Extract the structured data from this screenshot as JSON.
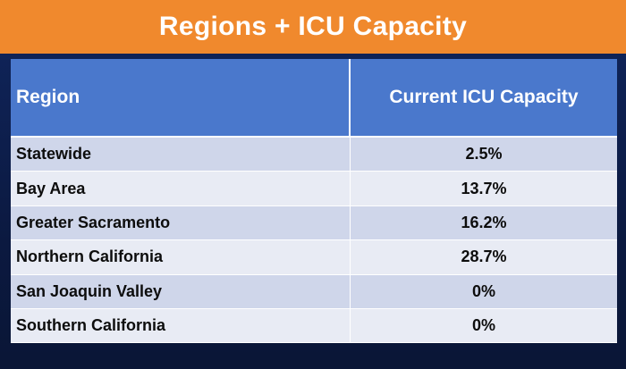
{
  "title": "Regions + ICU Capacity",
  "table": {
    "headers": [
      "Region",
      "Current ICU Capacity"
    ],
    "rows": [
      {
        "region": "Statewide",
        "capacity": "2.5%"
      },
      {
        "region": "Bay Area",
        "capacity": "13.7%"
      },
      {
        "region": "Greater Sacramento",
        "capacity": "16.2%"
      },
      {
        "region": "Northern California",
        "capacity": "28.7%"
      },
      {
        "region": "San Joaquin Valley",
        "capacity": "0%"
      },
      {
        "region": "Southern California",
        "capacity": "0%"
      }
    ]
  },
  "colors": {
    "title_bar": "#f0892d",
    "header": "#4a78cc",
    "row_dark": "#cfd6ea",
    "row_light": "#e8ebf4",
    "background": "#0c1a3c"
  }
}
